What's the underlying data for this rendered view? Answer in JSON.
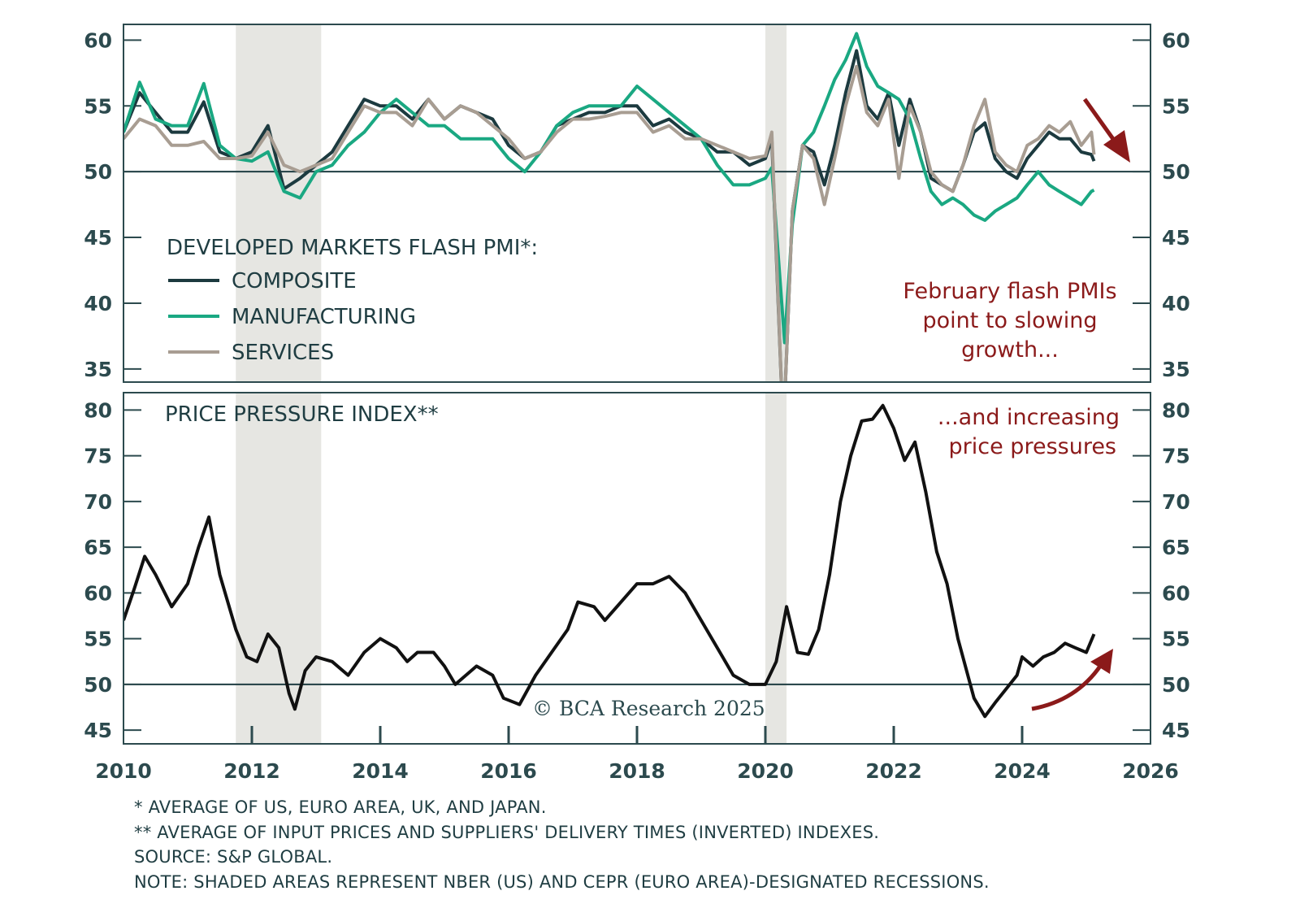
{
  "chart_data": [
    {
      "type": "line",
      "title": "DEVELOPED MARKETS FLASH PMI*:",
      "ylim": [
        34,
        61.2
      ],
      "xlim": [
        2010,
        2026
      ],
      "yticks": [
        35,
        40,
        45,
        50,
        55,
        60
      ],
      "reference_line": 50,
      "legend_placement": "left-middle",
      "series": [
        {
          "name": "COMPOSITE",
          "color": "#1c3a3f",
          "x": [
            2010.0,
            2010.25,
            2010.5,
            2010.75,
            2011.0,
            2011.25,
            2011.5,
            2011.75,
            2012.0,
            2012.25,
            2012.5,
            2012.75,
            2013.0,
            2013.25,
            2013.5,
            2013.75,
            2014.0,
            2014.25,
            2014.5,
            2014.75,
            2015.0,
            2015.25,
            2015.5,
            2015.75,
            2016.0,
            2016.25,
            2016.5,
            2016.75,
            2017.0,
            2017.25,
            2017.5,
            2017.75,
            2018.0,
            2018.25,
            2018.5,
            2018.75,
            2019.0,
            2019.25,
            2019.5,
            2019.75,
            2020.0,
            2020.1,
            2020.28,
            2020.42,
            2020.58,
            2020.75,
            2020.92,
            2021.08,
            2021.25,
            2021.42,
            2021.58,
            2021.75,
            2021.92,
            2022.08,
            2022.25,
            2022.42,
            2022.58,
            2022.75,
            2022.92,
            2023.08,
            2023.25,
            2023.42,
            2023.58,
            2023.75,
            2023.92,
            2024.08,
            2024.25,
            2024.42,
            2024.58,
            2024.75,
            2024.92,
            2025.08,
            2025.12
          ],
          "y": [
            53,
            56,
            54.5,
            53,
            53,
            55.3,
            51.5,
            51,
            51.5,
            53.5,
            48.7,
            49.5,
            50.5,
            51.5,
            53.5,
            55.5,
            55,
            55,
            54,
            55.5,
            54,
            55,
            54.5,
            54,
            52,
            51,
            51.5,
            53.5,
            54,
            54.5,
            54.5,
            55,
            55,
            53.5,
            54,
            53,
            52.5,
            51.5,
            51.5,
            50.5,
            51,
            52.5,
            30,
            47,
            52,
            51.5,
            49,
            52,
            56,
            59.2,
            55,
            54,
            56,
            52,
            55.5,
            53,
            49.5,
            49,
            48.5,
            50.5,
            53,
            53.7,
            51,
            50,
            49.5,
            51,
            52,
            53,
            52.5,
            52.5,
            51.5,
            51.3,
            50.8
          ]
        },
        {
          "name": "MANUFACTURING",
          "color": "#1aa882",
          "x": [
            2010.0,
            2010.25,
            2010.5,
            2010.75,
            2011.0,
            2011.25,
            2011.5,
            2011.75,
            2012.0,
            2012.25,
            2012.5,
            2012.75,
            2013.0,
            2013.25,
            2013.5,
            2013.75,
            2014.0,
            2014.25,
            2014.5,
            2014.75,
            2015.0,
            2015.25,
            2015.5,
            2015.75,
            2016.0,
            2016.25,
            2016.5,
            2016.75,
            2017.0,
            2017.25,
            2017.5,
            2017.75,
            2018.0,
            2018.25,
            2018.5,
            2018.75,
            2019.0,
            2019.25,
            2019.5,
            2019.75,
            2020.0,
            2020.1,
            2020.3,
            2020.42,
            2020.58,
            2020.75,
            2020.92,
            2021.08,
            2021.25,
            2021.42,
            2021.58,
            2021.75,
            2021.92,
            2022.08,
            2022.25,
            2022.42,
            2022.58,
            2022.75,
            2022.92,
            2023.08,
            2023.25,
            2023.42,
            2023.58,
            2023.75,
            2023.92,
            2024.08,
            2024.25,
            2024.42,
            2024.58,
            2024.75,
            2024.92,
            2025.08,
            2025.12
          ],
          "y": [
            53,
            56.8,
            54,
            53.5,
            53.5,
            56.7,
            52,
            51,
            50.8,
            51.5,
            48.5,
            48,
            50,
            50.5,
            52,
            53,
            54.5,
            55.5,
            54.5,
            53.5,
            53.5,
            52.5,
            52.5,
            52.5,
            51,
            50,
            51.5,
            53.5,
            54.5,
            55,
            55,
            55,
            56.5,
            55.5,
            54.5,
            53.5,
            52.5,
            50.5,
            49,
            49,
            49.5,
            50.3,
            37,
            46,
            52,
            53,
            55,
            57,
            58.5,
            60.5,
            58,
            56.5,
            56,
            55.5,
            54,
            51,
            48.5,
            47.5,
            48,
            47.5,
            46.7,
            46.3,
            47,
            47.5,
            48,
            49,
            50,
            49,
            48.5,
            48,
            47.5,
            48.5,
            48.6
          ]
        },
        {
          "name": "SERVICES",
          "color": "#a89d92",
          "x": [
            2010.0,
            2010.25,
            2010.5,
            2010.75,
            2011.0,
            2011.25,
            2011.5,
            2011.75,
            2012.0,
            2012.25,
            2012.5,
            2012.75,
            2013.0,
            2013.25,
            2013.5,
            2013.75,
            2014.0,
            2014.25,
            2014.5,
            2014.75,
            2015.0,
            2015.25,
            2015.5,
            2015.75,
            2016.0,
            2016.25,
            2016.5,
            2016.75,
            2017.0,
            2017.25,
            2017.5,
            2017.75,
            2018.0,
            2018.25,
            2018.5,
            2018.75,
            2019.0,
            2019.25,
            2019.5,
            2019.75,
            2020.0,
            2020.1,
            2020.28,
            2020.42,
            2020.58,
            2020.75,
            2020.92,
            2021.08,
            2021.25,
            2021.42,
            2021.58,
            2021.75,
            2021.92,
            2022.08,
            2022.25,
            2022.42,
            2022.58,
            2022.75,
            2022.92,
            2023.08,
            2023.25,
            2023.42,
            2023.58,
            2023.75,
            2023.92,
            2024.08,
            2024.25,
            2024.42,
            2024.58,
            2024.75,
            2024.92,
            2025.08,
            2025.12
          ],
          "y": [
            52.5,
            54,
            53.5,
            52,
            52,
            52.3,
            51,
            51,
            51.2,
            53,
            50.5,
            50,
            50.5,
            51,
            53,
            55,
            54.5,
            54.5,
            53.5,
            55.5,
            54,
            55,
            54.5,
            53.5,
            52.5,
            51,
            51.5,
            53,
            54,
            54,
            54.2,
            54.5,
            54.5,
            53,
            53.5,
            52.5,
            52.5,
            52,
            51.5,
            51,
            51.2,
            53,
            30,
            47,
            52,
            51,
            47.5,
            51,
            55,
            58,
            54.5,
            53.5,
            55.5,
            49.5,
            55,
            53,
            50,
            49,
            48.5,
            50.5,
            53.5,
            55.5,
            51.5,
            50.5,
            50,
            52,
            52.5,
            53.5,
            53,
            53.8,
            52,
            53,
            51.3
          ]
        }
      ],
      "recessions": [
        [
          2011.75,
          2013.08
        ],
        [
          2020.0,
          2020.33
        ]
      ],
      "legend_title": "DEVELOPED MARKETS FLASH PMI*:",
      "annotation": [
        "February flash PMIs",
        "point to slowing",
        "growth..."
      ]
    },
    {
      "type": "line",
      "title": "PRICE PRESSURE INDEX**",
      "ylim": [
        43.5,
        81.9
      ],
      "xlim": [
        2010,
        2026
      ],
      "yticks": [
        45,
        50,
        55,
        60,
        65,
        70,
        75,
        80
      ],
      "reference_line": 50,
      "series": [
        {
          "name": "PRICE PRESSURE INDEX",
          "color": "#111111",
          "x": [
            2010.0,
            2010.17,
            2010.33,
            2010.5,
            2010.75,
            2011.0,
            2011.17,
            2011.33,
            2011.5,
            2011.75,
            2011.92,
            2012.08,
            2012.25,
            2012.42,
            2012.58,
            2012.67,
            2012.83,
            2013.0,
            2013.25,
            2013.5,
            2013.75,
            2014.0,
            2014.25,
            2014.42,
            2014.58,
            2014.83,
            2015.0,
            2015.17,
            2015.5,
            2015.75,
            2015.92,
            2016.17,
            2016.42,
            2016.67,
            2016.92,
            2017.08,
            2017.33,
            2017.5,
            2017.75,
            2018.0,
            2018.25,
            2018.5,
            2018.75,
            2019.0,
            2019.25,
            2019.5,
            2019.75,
            2020.0,
            2020.17,
            2020.33,
            2020.5,
            2020.67,
            2020.83,
            2021.0,
            2021.17,
            2021.33,
            2021.5,
            2021.67,
            2021.83,
            2022.0,
            2022.17,
            2022.33,
            2022.5,
            2022.67,
            2022.83,
            2023.0,
            2023.25,
            2023.42,
            2023.58,
            2023.75,
            2023.92,
            2024.0,
            2024.17,
            2024.33,
            2024.5,
            2024.67,
            2024.83,
            2025.0,
            2025.12
          ],
          "y": [
            57,
            60.5,
            64,
            62,
            58.5,
            61,
            65,
            68.3,
            62,
            56,
            53,
            52.5,
            55.5,
            54,
            49,
            47.3,
            51.5,
            53,
            52.5,
            51,
            53.5,
            55,
            54,
            52.5,
            53.5,
            53.5,
            52,
            50,
            52,
            51,
            48.5,
            47.8,
            51,
            53.5,
            56,
            59,
            58.5,
            57,
            59,
            61,
            61,
            61.8,
            60,
            57,
            54,
            51,
            50,
            50,
            52.5,
            58.5,
            53.5,
            53.3,
            56,
            62,
            70,
            75,
            78.8,
            79,
            80.5,
            78,
            74.5,
            76.5,
            71,
            64.5,
            61,
            55,
            48.5,
            46.5,
            48,
            49.5,
            51,
            53,
            52,
            53,
            53.5,
            54.5,
            54,
            53.5,
            55.5
          ]
        }
      ],
      "recessions": [
        [
          2011.75,
          2013.08
        ],
        [
          2020.0,
          2020.33
        ]
      ],
      "annotation": [
        "...and increasing",
        "price pressures"
      ]
    }
  ],
  "xaxis": {
    "ticks": [
      "2010",
      "2012",
      "2014",
      "2016",
      "2018",
      "2020",
      "2022",
      "2024",
      "2026"
    ]
  },
  "watermark": "© BCA Research 2025",
  "footnotes": [
    "* AVERAGE OF US, EURO AREA, UK, AND JAPAN.",
    "** AVERAGE OF INPUT PRICES AND SUPPLIERS' DELIVERY TIMES (INVERTED) INDEXES.",
    "SOURCE: S&P GLOBAL.",
    "NOTE: SHADED AREAS REPRESENT NBER (US) AND CEPR (EURO AREA)-DESIGNATED RECESSIONS."
  ],
  "colors": {
    "axis": "#2c4a4e",
    "annotation": "#8b1a1a",
    "shade": "#e6e6e2"
  }
}
